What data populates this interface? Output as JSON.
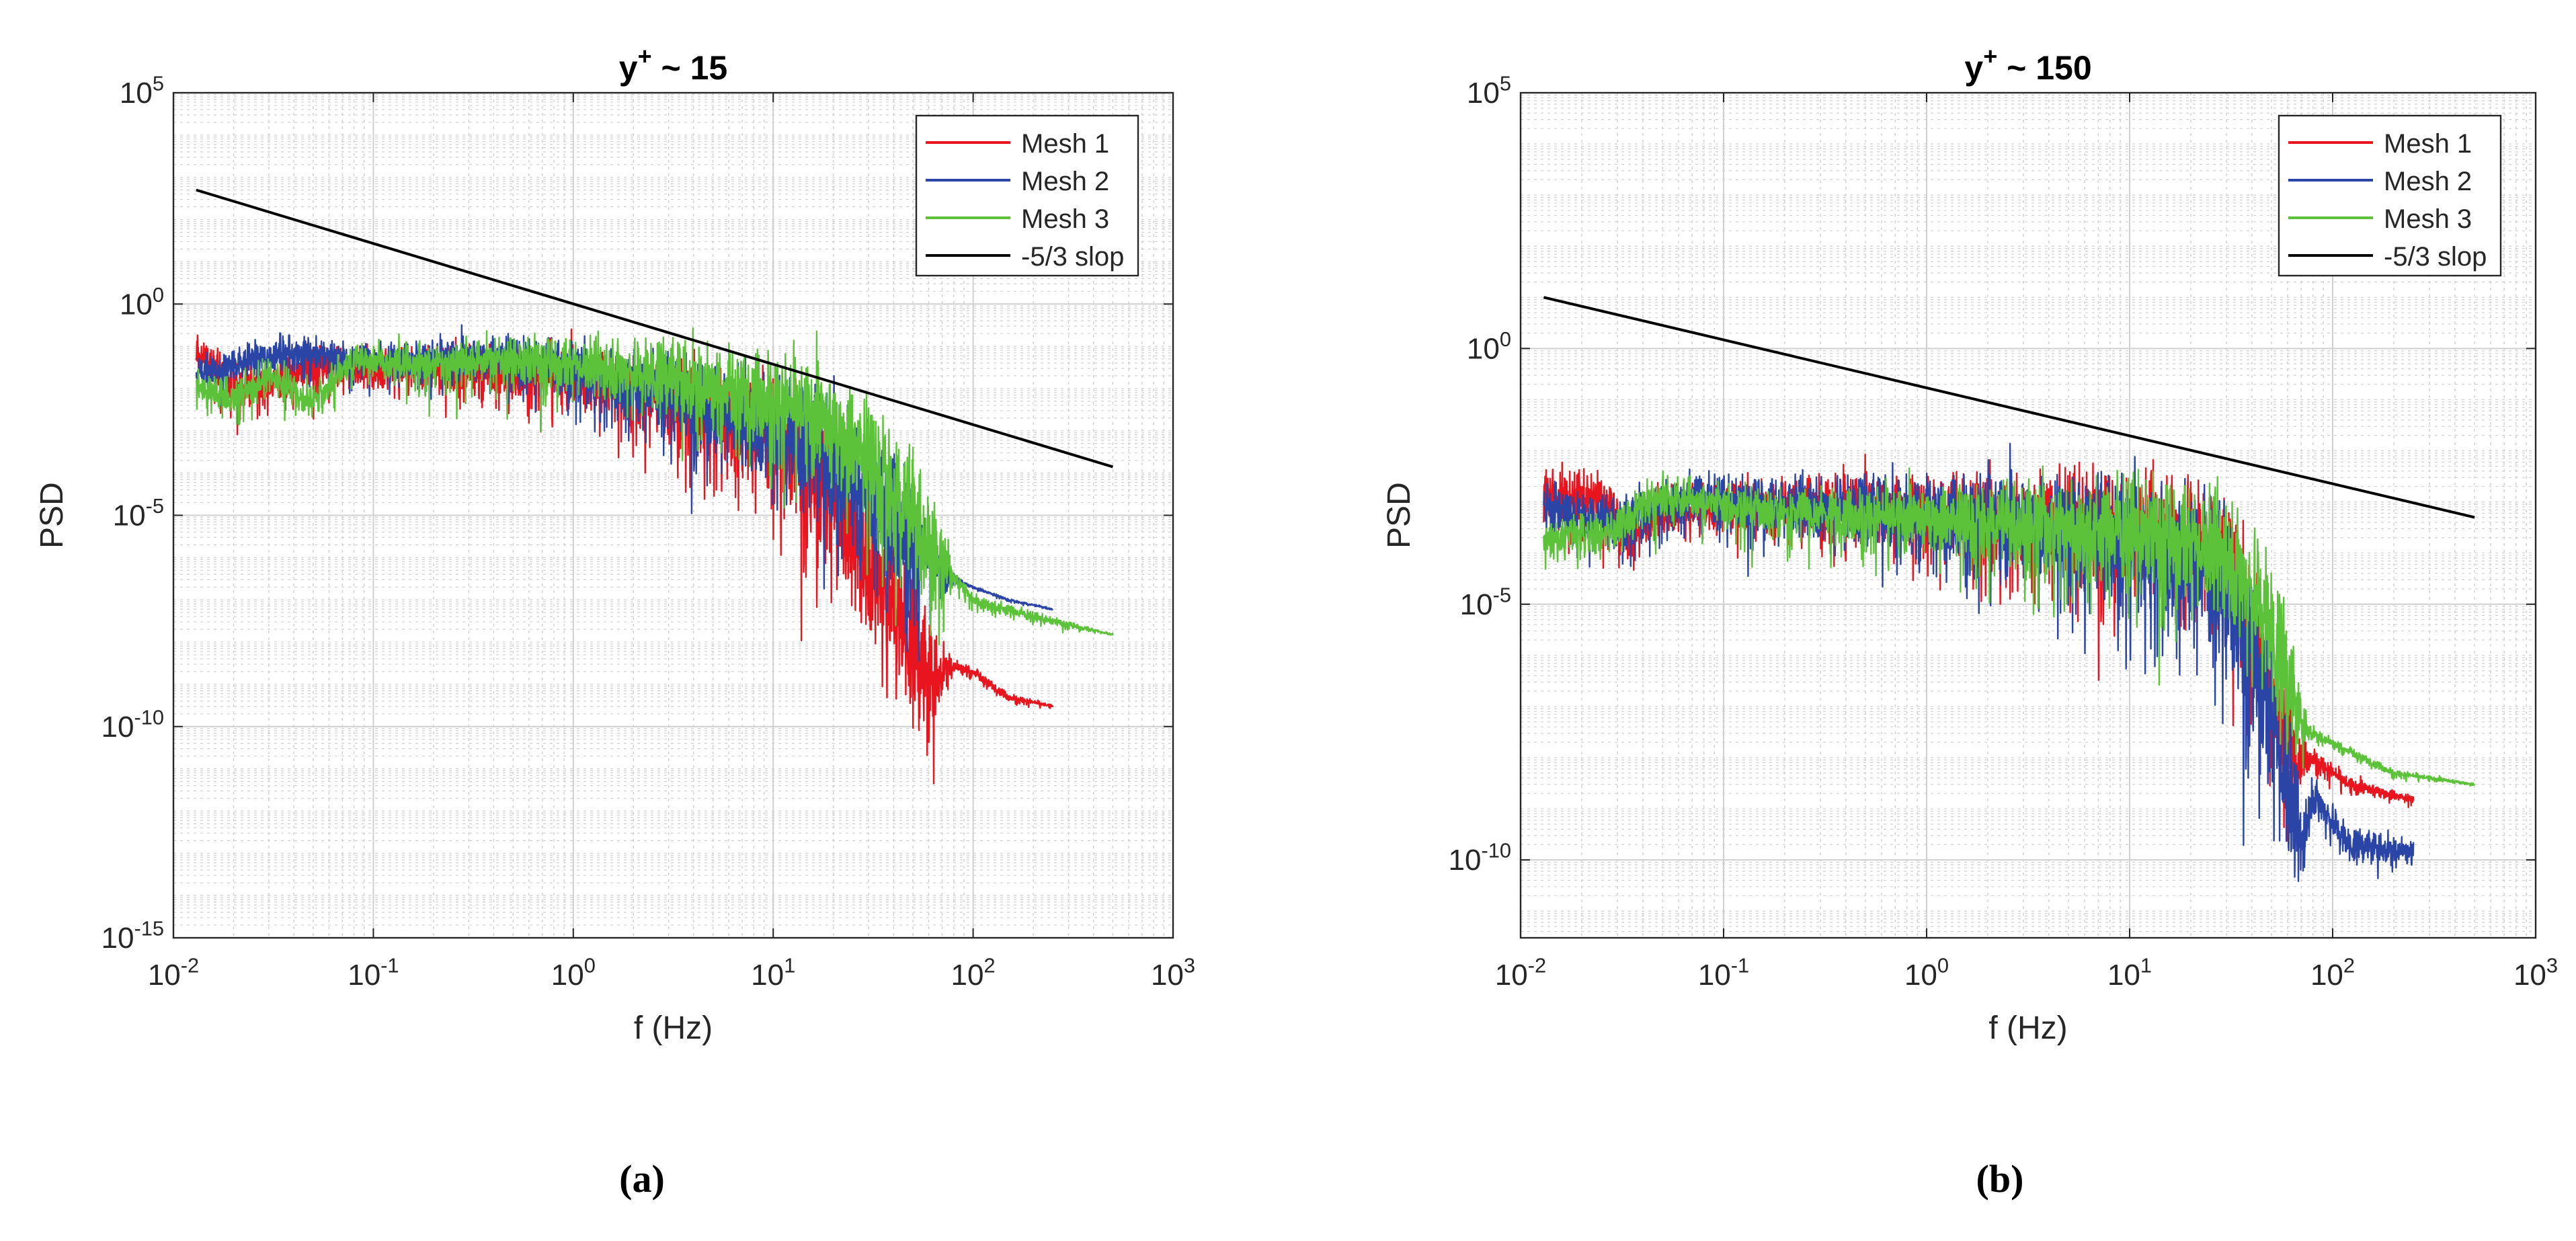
{
  "colors": {
    "mesh1": "#e8141e",
    "mesh2": "#2a45a6",
    "mesh3": "#5cc23a",
    "slope": "#000000",
    "grid": "#d0d0d0",
    "axis": "#262626"
  },
  "captions": [
    "(a)",
    "(b)"
  ],
  "chart_data": [
    {
      "type": "line",
      "panel": "a",
      "title_base": "y",
      "title_sup": "+",
      "title_rest": " ~ 15",
      "xlabel": "f (Hz)",
      "ylabel": "PSD",
      "xscale": "log",
      "yscale": "log",
      "xlim": [
        0.01,
        1000
      ],
      "ylim": [
        1e-15,
        100000
      ],
      "xticks": [
        {
          "base": "10",
          "exp": "-2"
        },
        {
          "base": "10",
          "exp": "-1"
        },
        {
          "base": "10",
          "exp": "0"
        },
        {
          "base": "10",
          "exp": "1"
        },
        {
          "base": "10",
          "exp": "2"
        },
        {
          "base": "10",
          "exp": "3"
        }
      ],
      "yticks": [
        {
          "base": "10",
          "exp": "-15"
        },
        {
          "base": "10",
          "exp": "-10"
        },
        {
          "base": "10",
          "exp": "-5"
        },
        {
          "base": "10",
          "exp": "0"
        },
        {
          "base": "10",
          "exp": "5"
        }
      ],
      "grid": true,
      "legend_position": "top-right",
      "legend": [
        "Mesh 1",
        "Mesh 2",
        "Mesh 3",
        "-5/3 slop"
      ],
      "slope_line": {
        "x": [
          0.013,
          500
        ],
        "y": [
          500,
          0.00014
        ]
      },
      "series": [
        {
          "name": "Mesh 1",
          "color_key": "mesh1",
          "fmax": 250,
          "points": [
            [
              0.013,
              0.07
            ],
            [
              0.02,
              0.015
            ],
            [
              0.03,
              0.013
            ],
            [
              0.05,
              0.04
            ],
            [
              0.1,
              0.03
            ],
            [
              0.3,
              0.03
            ],
            [
              1,
              0.02
            ],
            [
              3,
              0.006
            ],
            [
              8,
              0.0015
            ],
            [
              15,
              0.0002
            ],
            [
              30,
              1e-06
            ],
            [
              45,
              3e-08
            ],
            [
              60,
              1e-09
            ],
            [
              75,
              3e-09
            ],
            [
              100,
              2e-09
            ],
            [
              150,
              5e-10
            ],
            [
              250,
              3e-10
            ]
          ],
          "noise": [
            [
              0.1,
              0.6
            ],
            [
              1,
              0.9
            ],
            [
              5,
              1.4
            ],
            [
              20,
              2.2
            ],
            [
              45,
              2.2
            ],
            [
              60,
              2.0
            ],
            [
              70,
              0.7
            ],
            [
              80,
              0.2
            ],
            [
              250,
              0.05
            ]
          ]
        },
        {
          "name": "Mesh 2",
          "color_key": "mesh2",
          "fmax": 250,
          "points": [
            [
              0.013,
              0.02
            ],
            [
              0.02,
              0.04
            ],
            [
              0.04,
              0.08
            ],
            [
              0.08,
              0.05
            ],
            [
              0.2,
              0.05
            ],
            [
              0.5,
              0.06
            ],
            [
              1,
              0.03
            ],
            [
              3,
              0.008
            ],
            [
              8,
              0.002
            ],
            [
              15,
              0.0005
            ],
            [
              30,
              5e-05
            ],
            [
              50,
              3e-06
            ],
            [
              70,
              4e-07
            ],
            [
              100,
              2e-07
            ],
            [
              150,
              1e-07
            ],
            [
              250,
              6e-08
            ]
          ],
          "noise": [
            [
              0.1,
              0.5
            ],
            [
              1,
              0.8
            ],
            [
              5,
              1.3
            ],
            [
              20,
              2.0
            ],
            [
              50,
              2.0
            ],
            [
              70,
              0.5
            ],
            [
              90,
              0.05
            ],
            [
              250,
              0.03
            ]
          ]
        },
        {
          "name": "Mesh 3",
          "color_key": "mesh3",
          "fmax": 500,
          "points": [
            [
              0.013,
              0.01
            ],
            [
              0.02,
              0.006
            ],
            [
              0.03,
              0.02
            ],
            [
              0.05,
              0.005
            ],
            [
              0.08,
              0.05
            ],
            [
              0.15,
              0.04
            ],
            [
              0.4,
              0.05
            ],
            [
              1,
              0.04
            ],
            [
              3,
              0.02
            ],
            [
              8,
              0.008
            ],
            [
              15,
              0.003
            ],
            [
              30,
              0.0003
            ],
            [
              50,
              1e-05
            ],
            [
              70,
              8e-07
            ],
            [
              100,
              1e-07
            ],
            [
              200,
              4e-08
            ],
            [
              500,
              1.5e-08
            ]
          ],
          "noise": [
            [
              0.1,
              0.5
            ],
            [
              1,
              0.8
            ],
            [
              5,
              1.3
            ],
            [
              20,
              1.7
            ],
            [
              50,
              2.0
            ],
            [
              70,
              1.2
            ],
            [
              80,
              0.25
            ],
            [
              500,
              0.03
            ]
          ]
        }
      ]
    },
    {
      "type": "line",
      "panel": "b",
      "title_base": "y",
      "title_sup": "+",
      "title_rest": " ~ 150",
      "xlabel": "f (Hz)",
      "ylabel": "PSD",
      "xscale": "log",
      "yscale": "log",
      "xlim": [
        0.01,
        1000
      ],
      "ylim": [
        3e-12,
        100000
      ],
      "xticks": [
        {
          "base": "10",
          "exp": "-2"
        },
        {
          "base": "10",
          "exp": "-1"
        },
        {
          "base": "10",
          "exp": "0"
        },
        {
          "base": "10",
          "exp": "1"
        },
        {
          "base": "10",
          "exp": "2"
        },
        {
          "base": "10",
          "exp": "3"
        }
      ],
      "yticks": [
        {
          "base": "10",
          "exp": "-10"
        },
        {
          "base": "10",
          "exp": "-5"
        },
        {
          "base": "10",
          "exp": "0"
        },
        {
          "base": "10",
          "exp": "5"
        }
      ],
      "grid": true,
      "legend_position": "top-right",
      "legend": [
        "Mesh 1",
        "Mesh 2",
        "Mesh 3",
        "-5/3 slop"
      ],
      "slope_line": {
        "x": [
          0.013,
          500
        ],
        "y": [
          10,
          0.0005
        ]
      },
      "series": [
        {
          "name": "Mesh 1",
          "color_key": "mesh1",
          "fmax": 250,
          "points": [
            [
              0.013,
              0.0015
            ],
            [
              0.025,
              0.0012
            ],
            [
              0.035,
              0.0002
            ],
            [
              0.05,
              0.0008
            ],
            [
              0.1,
              0.0008
            ],
            [
              0.3,
              0.001
            ],
            [
              1,
              0.0007
            ],
            [
              3,
              0.0005
            ],
            [
              10,
              0.0003
            ],
            [
              20,
              0.0002
            ],
            [
              30,
              5e-05
            ],
            [
              45,
              1e-06
            ],
            [
              60,
              3e-08
            ],
            [
              70,
              1e-08
            ],
            [
              80,
              1e-08
            ],
            [
              120,
              3e-09
            ],
            [
              250,
              1.5e-09
            ]
          ],
          "noise": [
            [
              0.1,
              0.6
            ],
            [
              1,
              0.9
            ],
            [
              5,
              1.3
            ],
            [
              20,
              1.6
            ],
            [
              60,
              1.8
            ],
            [
              70,
              0.6
            ],
            [
              80,
              0.25
            ],
            [
              250,
              0.1
            ]
          ]
        },
        {
          "name": "Mesh 2",
          "color_key": "mesh2",
          "fmax": 250,
          "points": [
            [
              0.013,
              0.0008
            ],
            [
              0.03,
              0.0004
            ],
            [
              0.045,
              0.0008
            ],
            [
              0.07,
              0.0015
            ],
            [
              0.1,
              0.001
            ],
            [
              0.3,
              0.0008
            ],
            [
              1,
              0.0006
            ],
            [
              3,
              0.0004
            ],
            [
              10,
              0.0002
            ],
            [
              20,
              0.0001
            ],
            [
              30,
              2e-05
            ],
            [
              45,
              4e-07
            ],
            [
              60,
              3e-09
            ],
            [
              70,
              2e-10
            ],
            [
              80,
              2e-09
            ],
            [
              120,
              2e-10
            ],
            [
              250,
              1.5e-10
            ]
          ],
          "noise": [
            [
              0.1,
              0.6
            ],
            [
              1,
              1.0
            ],
            [
              5,
              1.4
            ],
            [
              20,
              1.8
            ],
            [
              60,
              2.0
            ],
            [
              70,
              1.0
            ],
            [
              80,
              0.5
            ],
            [
              250,
              0.3
            ]
          ]
        },
        {
          "name": "Mesh 3",
          "color_key": "mesh3",
          "fmax": 500,
          "points": [
            [
              0.013,
              0.00018
            ],
            [
              0.03,
              0.0003
            ],
            [
              0.05,
              0.0015
            ],
            [
              0.1,
              0.0008
            ],
            [
              0.3,
              0.0006
            ],
            [
              1,
              0.0005
            ],
            [
              3,
              0.0004
            ],
            [
              10,
              0.0003
            ],
            [
              20,
              0.0002
            ],
            [
              30,
              0.0001
            ],
            [
              45,
              1e-05
            ],
            [
              60,
              3e-07
            ],
            [
              70,
              5e-08
            ],
            [
              80,
              3e-08
            ],
            [
              200,
              5e-09
            ],
            [
              500,
              3e-09
            ]
          ],
          "noise": [
            [
              0.1,
              0.5
            ],
            [
              1,
              0.8
            ],
            [
              5,
              1.2
            ],
            [
              20,
              1.4
            ],
            [
              60,
              1.8
            ],
            [
              70,
              0.6
            ],
            [
              80,
              0.15
            ],
            [
              500,
              0.03
            ]
          ]
        }
      ]
    }
  ]
}
